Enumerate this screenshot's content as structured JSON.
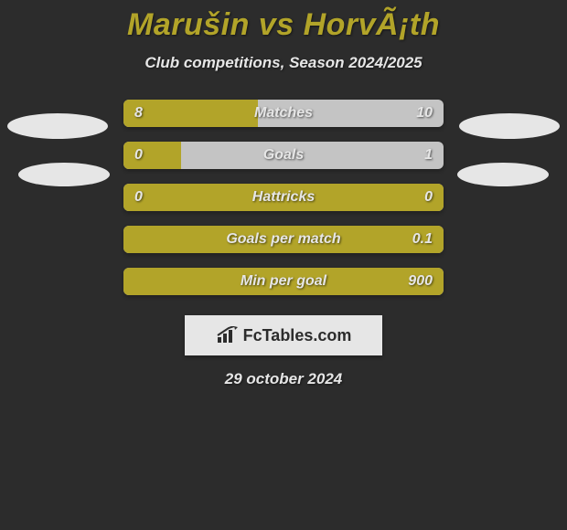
{
  "colors": {
    "page_bg": "#2c2c2c",
    "text_primary": "#e6e6e6",
    "accent": "#b2a429",
    "bar_bg": "#c4c4c4",
    "ellipse": "#e6e6e6",
    "logo_bg": "#e6e6e6",
    "logo_text": "#2c2c2c"
  },
  "typography": {
    "title_fontsize": 34,
    "subtitle_fontsize": 17,
    "bar_label_fontsize": 16,
    "date_fontsize": 17
  },
  "header": {
    "title": "Marušin vs HorvÃ¡th",
    "subtitle": "Club competitions, Season 2024/2025"
  },
  "bars": [
    {
      "label": "Matches",
      "left_value": "8",
      "right_value": "10",
      "left_pct": 42,
      "right_pct": 0
    },
    {
      "label": "Goals",
      "left_value": "0",
      "right_value": "1",
      "left_pct": 18,
      "right_pct": 0
    },
    {
      "label": "Hattricks",
      "left_value": "0",
      "right_value": "0",
      "left_pct": 100,
      "right_pct": 0
    },
    {
      "label": "Goals per match",
      "left_value": "",
      "right_value": "0.1",
      "left_pct": 100,
      "right_pct": 0
    },
    {
      "label": "Min per goal",
      "left_value": "",
      "right_value": "900",
      "left_pct": 100,
      "right_pct": 0
    }
  ],
  "logo": {
    "text": "FcTables.com"
  },
  "footer": {
    "date": "29 october 2024"
  }
}
